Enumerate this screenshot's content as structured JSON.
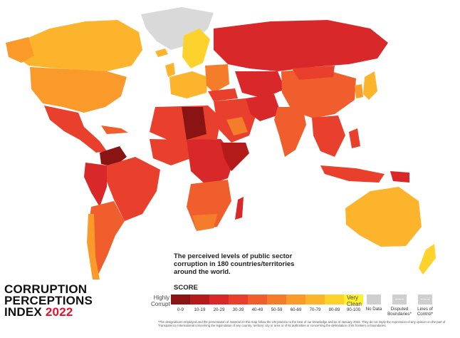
{
  "title": {
    "line1": "CORRUPTION",
    "line2": "PERCEPTIONS",
    "line3_prefix": "INDEX",
    "year": "2022"
  },
  "description": "The perceived levels of public sector corruption in 180 countries/territories around the world.",
  "legend": {
    "heading": "SCORE",
    "low_label": "Highly Corrupt",
    "high_label": "Very Clean",
    "ranges": [
      {
        "label": "0-9",
        "color": "#8a1414"
      },
      {
        "label": "10-19",
        "color": "#b41b1b"
      },
      {
        "label": "20-29",
        "color": "#d8282a"
      },
      {
        "label": "30-39",
        "color": "#e8402d"
      },
      {
        "label": "40-49",
        "color": "#ef5e2c"
      },
      {
        "label": "50-59",
        "color": "#f47d2b"
      },
      {
        "label": "60-69",
        "color": "#f99a2b"
      },
      {
        "label": "70-79",
        "color": "#fbb42c"
      },
      {
        "label": "80-89",
        "color": "#fdd22c"
      },
      {
        "label": "90-100",
        "color": "#fff02d"
      }
    ],
    "no_data": "No Data",
    "disputed": "Disputed Boundaries*",
    "lines_of_control": "Lines of Control*"
  },
  "disclaimer": "*The designations employed and the presentation of material on this map follow the UN practice to the best of our knowledge and as of January 2023. They do not imply the expression of any opinion on the part of Transparency International concerning the legal status of any country, territory, city or area or of its authorities or concerning the delimitation of its frontiers or boundaries.",
  "colors": {
    "ocean": "#ffffff",
    "no_data": "#d9d9d9",
    "accent": "#e3122c"
  }
}
